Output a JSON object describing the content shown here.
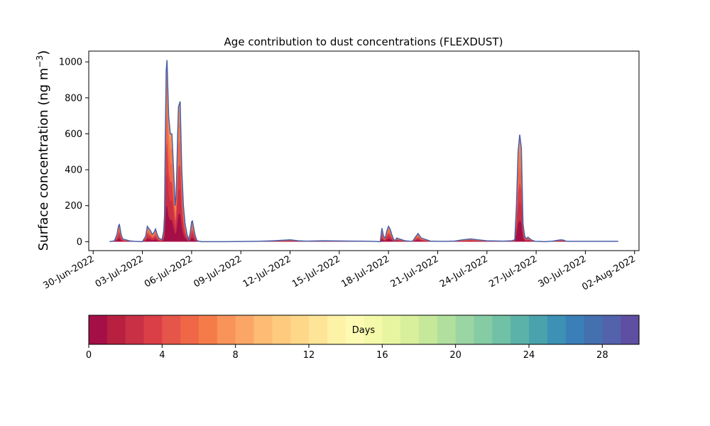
{
  "chart_data": {
    "type": "area",
    "title": "Age contribution to dust concentrations (FLEXDUST)",
    "ylabel": "Surface concentration (ng m",
    "ylabel_sup": "−3",
    "ylabel_close": ")",
    "xlabel": "",
    "ylim": [
      -50,
      1060
    ],
    "yticks": [
      0,
      200,
      400,
      600,
      800,
      1000
    ],
    "xlim": [
      "2022-06-30T00:00",
      "2022-08-02T00:00"
    ],
    "xticks": [
      "30-Jun-2022",
      "03-Jul-2022",
      "06-Jul-2022",
      "09-Jul-2022",
      "12-Jul-2022",
      "15-Jul-2022",
      "18-Jul-2022",
      "21-Jul-2022",
      "24-Jul-2022",
      "27-Jul-2022",
      "30-Jul-2022",
      "02-Aug-2022"
    ],
    "xtick_days": [
      0,
      3,
      6,
      9,
      12,
      15,
      18,
      21,
      24,
      27,
      30,
      33
    ],
    "grid": false,
    "total_color": "#4a5fa8",
    "total": {
      "x": [
        1.0,
        1.3,
        1.45,
        1.55,
        1.6,
        1.7,
        1.8,
        2.0,
        2.2,
        2.5,
        3.0,
        3.2,
        3.3,
        3.5,
        3.6,
        3.7,
        3.8,
        3.9,
        4.0,
        4.2,
        4.3,
        4.35,
        4.4,
        4.45,
        4.5,
        4.6,
        4.7,
        4.8,
        4.9,
        5.0,
        5.05,
        5.1,
        5.15,
        5.2,
        5.3,
        5.4,
        5.5,
        5.6,
        5.7,
        5.8,
        5.9,
        6.0,
        6.05,
        6.1,
        6.2,
        6.3,
        6.4,
        6.5,
        6.6,
        6.8,
        7.0,
        8.0,
        10.0,
        11.0,
        12.0,
        12.5,
        13.0,
        14.0,
        16.0,
        17.0,
        17.5,
        17.6,
        17.7,
        17.8,
        17.9,
        18.0,
        18.1,
        18.2,
        18.3,
        18.4,
        18.5,
        19.0,
        19.4,
        19.5,
        19.6,
        19.8,
        20.0,
        20.5,
        20.6,
        20.8,
        21.0,
        21.5,
        22.0,
        22.5,
        23.0,
        23.5,
        24.0,
        25.0,
        25.5,
        25.7,
        25.8,
        25.9,
        26.0,
        26.1,
        26.2,
        26.3,
        26.4,
        26.5,
        26.7,
        26.9,
        27.0,
        27.5,
        28.0,
        28.5,
        28.7,
        28.8,
        29.0,
        29.5,
        30.0,
        32.0
      ],
      "y": [
        0,
        5,
        40,
        90,
        95,
        40,
        15,
        10,
        5,
        2,
        0,
        30,
        85,
        60,
        40,
        50,
        70,
        40,
        20,
        10,
        60,
        150,
        600,
        950,
        1010,
        700,
        600,
        600,
        400,
        200,
        250,
        400,
        600,
        750,
        780,
        400,
        200,
        100,
        50,
        10,
        40,
        110,
        115,
        90,
        40,
        10,
        3,
        2,
        0,
        0,
        0,
        0,
        2,
        5,
        10,
        5,
        3,
        5,
        3,
        2,
        0,
        75,
        30,
        20,
        60,
        85,
        70,
        40,
        15,
        5,
        20,
        5,
        2,
        5,
        20,
        45,
        20,
        5,
        2,
        3,
        2,
        2,
        3,
        10,
        15,
        10,
        5,
        3,
        5,
        10,
        200,
        500,
        595,
        520,
        100,
        30,
        15,
        25,
        10,
        3,
        2,
        0,
        3,
        10,
        8,
        3,
        2,
        2,
        2,
        2
      ]
    },
    "colorbar": {
      "label": "Days",
      "min": 0,
      "max": 30,
      "ticks": [
        0,
        4,
        8,
        12,
        16,
        20,
        24,
        28
      ],
      "colors": [
        "#a50f47",
        "#b8203f",
        "#c92f45",
        "#da3e47",
        "#e65549",
        "#ef6747",
        "#f57c49",
        "#f8935a",
        "#fba667",
        "#fdbb73",
        "#fdca7e",
        "#fed789",
        "#fee496",
        "#fef2a6",
        "#fdfbb3",
        "#f4f9aa",
        "#e8f5a0",
        "#d8ef9b",
        "#c5e89a",
        "#b1df9e",
        "#9bd5a3",
        "#85cca4",
        "#70c1a5",
        "#5bb2a8",
        "#4aa3ac",
        "#3d91b5",
        "#3a7fb8",
        "#4570b0",
        "#5362ac",
        "#5e4fa2"
      ]
    }
  }
}
